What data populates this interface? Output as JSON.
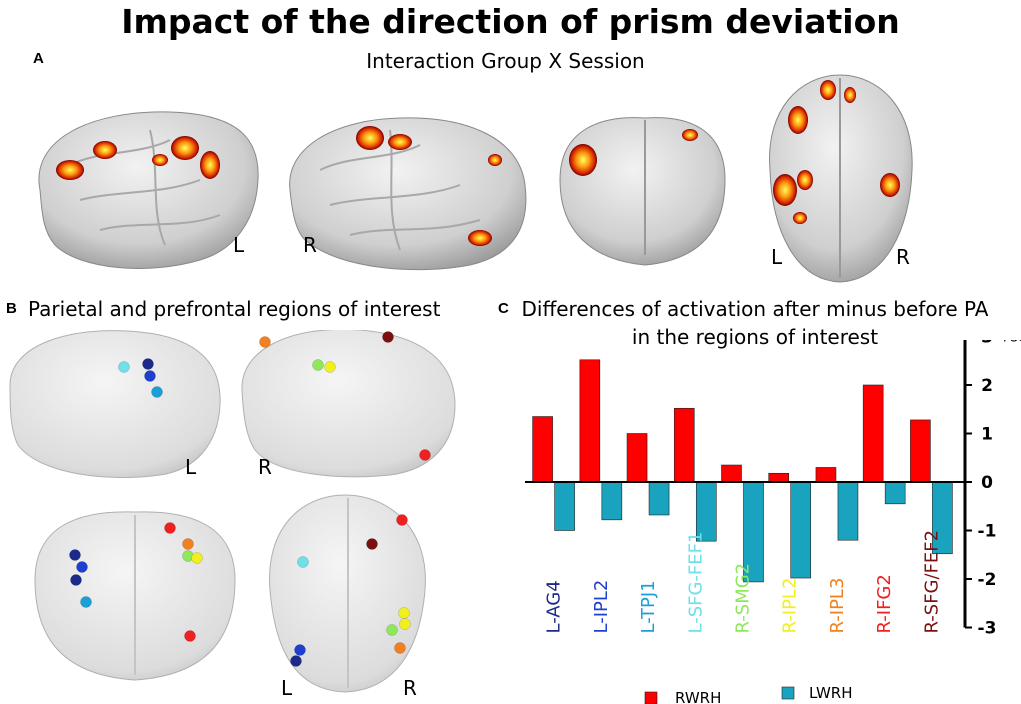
{
  "title": "Impact of the direction of prism deviation",
  "panel_a": {
    "label": "A",
    "title": "Interaction Group X Session",
    "side_labels": [
      "L",
      "R",
      "L",
      "R"
    ]
  },
  "panel_b": {
    "label": "B",
    "title": "Parietal and prefrontal regions of interest",
    "side_labels": [
      "L",
      "R",
      "L",
      "R"
    ]
  },
  "panel_c": {
    "label": "C",
    "title_line1": "Differences of activation after minus before PA",
    "title_line2": "in the regions of interest"
  },
  "colors": {
    "rwrh": "#ff0000",
    "lwrh": "#1aa3bf",
    "roi": [
      "#1c2a8c",
      "#1f3fd0",
      "#1aa0d8",
      "#6fe0e8",
      "#8fe85a",
      "#f0f020",
      "#f08020",
      "#f02020",
      "#7a1010"
    ]
  },
  "chart_data": {
    "type": "bar",
    "title": "Differences of activation after minus before PA in the regions of interest",
    "categories": [
      "L-AG4",
      "L-IPL2",
      "L-TPJ1",
      "L-SFG-FEF1",
      "R-SMG2",
      "R-IPL2",
      "R-IPL3",
      "R-IFG2",
      "R-SFG/FEF2"
    ],
    "category_colors": [
      "#1c2a8c",
      "#1f3fd0",
      "#1aa0d8",
      "#6fe0e8",
      "#8fe85a",
      "#f0f020",
      "#f08020",
      "#f02020",
      "#7a1010"
    ],
    "series": [
      {
        "name": "RWRH",
        "color": "#ff0000",
        "values": [
          1.35,
          2.52,
          1.0,
          1.52,
          0.35,
          0.18,
          0.3,
          2.0,
          1.28
        ]
      },
      {
        "name": "LWRH",
        "color": "#1aa3bf",
        "values": [
          -1.0,
          -0.78,
          -0.68,
          -1.22,
          -2.06,
          -1.98,
          -1.2,
          -0.45,
          -1.48
        ]
      }
    ],
    "ylabel": "PSC",
    "ylim": [
      -3,
      3
    ],
    "yticks": [
      -3,
      -2,
      -1,
      0,
      1,
      2,
      3
    ],
    "ytick_labels": [
      "-3",
      "-2",
      "-1",
      "0",
      "1",
      "2",
      "3"
    ],
    "legend": "bottom",
    "grid": false
  }
}
